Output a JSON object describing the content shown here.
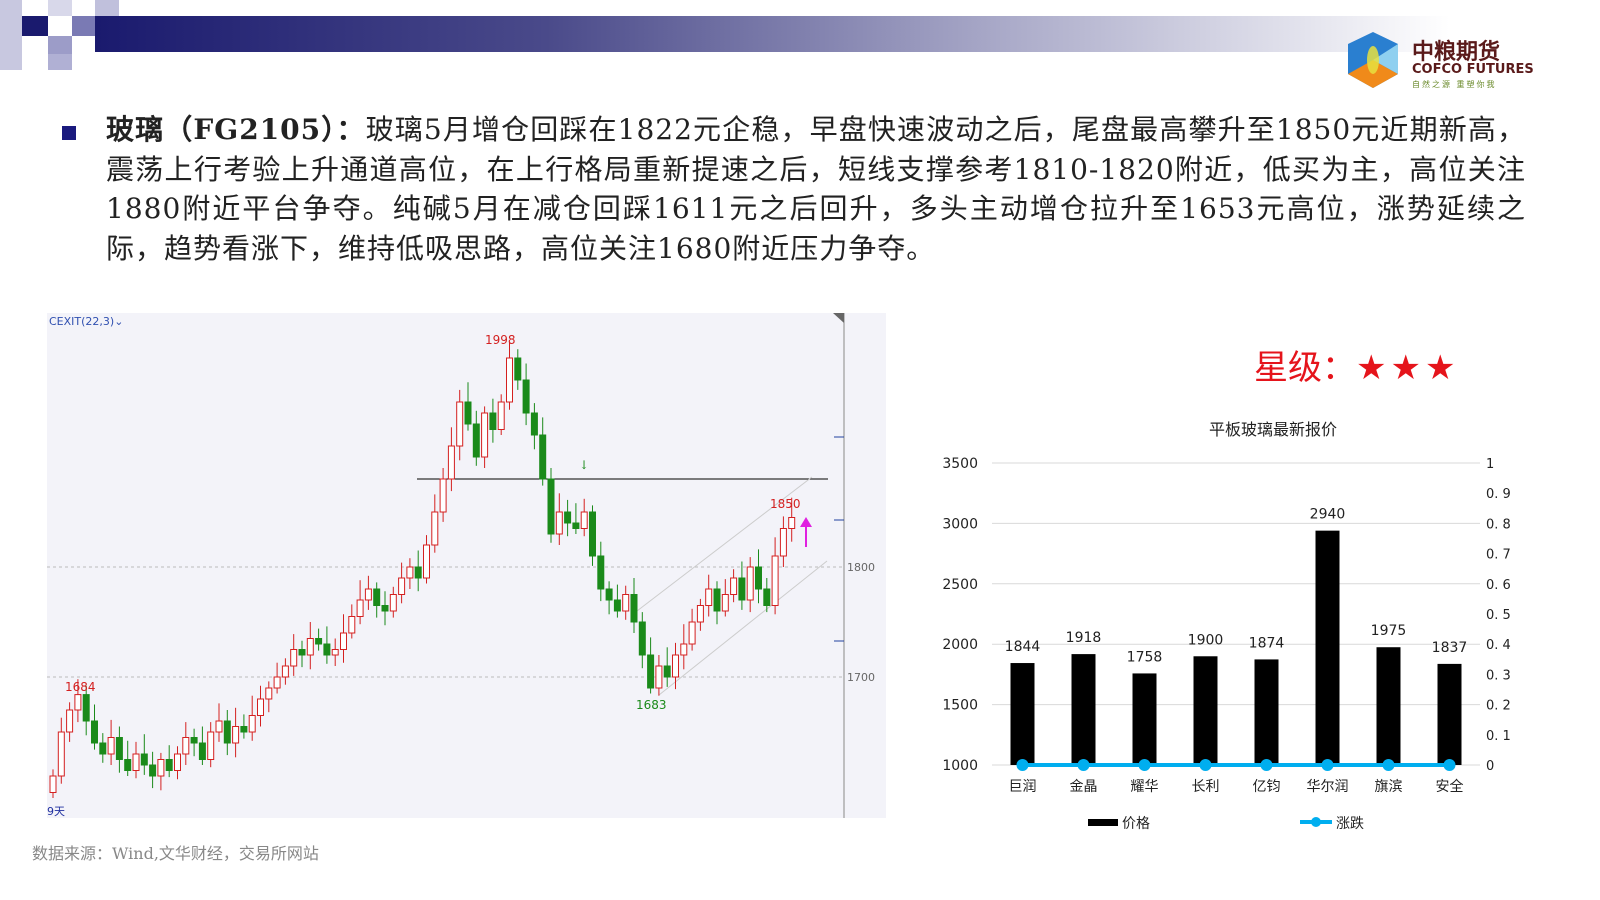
{
  "logo": {
    "cn": "中粮期货",
    "en": "COFCO FUTURES",
    "slogan": "自然之源 重塑你我"
  },
  "paragraph": {
    "lead": "玻璃（FG2105）：",
    "body": "玻璃5月增仓回踩在1822元企稳，早盘快速波动之后，尾盘最高攀升至1850元近期新高，震荡上行考验上升通道高位，在上行格局重新提速之后，短线支撑参考1810-1820附近，低买为主，高位关注1880附近平台争夺。纯碱5月在减仓回踩1611元之后回升，多头主动增仓拉升至1653元高位，涨势延续之际，趋势看涨下，维持低吸思路，高位关注1680附近压力争夺。"
  },
  "rating": {
    "label": "星级：",
    "stars": "★★★",
    "value": 3,
    "color": "#e5141b"
  },
  "source": "数据来源：Wind,文华财经，交易所网站",
  "kline": {
    "indicator": "CEXIT(22,3)",
    "period_label": "9天",
    "price_ticks": [
      1800,
      1700
    ],
    "annotations": {
      "high": "1998",
      "low_left": "1684",
      "low": "1683",
      "last_high": "1850"
    },
    "up_color": "#d42020",
    "down_color": "#1a8a1a",
    "closes": [
      1610,
      1650,
      1670,
      1684,
      1660,
      1640,
      1630,
      1645,
      1625,
      1615,
      1630,
      1620,
      1610,
      1625,
      1615,
      1630,
      1645,
      1640,
      1625,
      1650,
      1660,
      1640,
      1655,
      1650,
      1665,
      1680,
      1690,
      1700,
      1710,
      1725,
      1720,
      1735,
      1730,
      1720,
      1725,
      1740,
      1755,
      1770,
      1780,
      1765,
      1760,
      1775,
      1790,
      1800,
      1790,
      1820,
      1850,
      1880,
      1910,
      1950,
      1930,
      1900,
      1940,
      1925,
      1950,
      1990,
      1970,
      1940,
      1920,
      1880,
      1830,
      1850,
      1840,
      1835,
      1850,
      1810,
      1780,
      1770,
      1760,
      1775,
      1750,
      1720,
      1690,
      1710,
      1700,
      1720,
      1730,
      1750,
      1765,
      1780,
      1760,
      1775,
      1790,
      1770,
      1800,
      1780,
      1765,
      1810,
      1835,
      1845
    ]
  },
  "chart_data": {
    "type": "bar",
    "title": "平板玻璃最新报价",
    "categories": [
      "巨润",
      "金晶",
      "耀华",
      "长利",
      "亿钧",
      "华尔润",
      "旗滨",
      "安全"
    ],
    "series": [
      {
        "name": "价格",
        "type": "bar",
        "values": [
          1844,
          1918,
          1758,
          1900,
          1874,
          2940,
          1975,
          1837
        ],
        "color": "#000000"
      },
      {
        "name": "涨跌",
        "type": "line",
        "values": [
          0,
          0,
          0,
          0,
          0,
          0,
          0,
          0
        ],
        "color": "#00aeef",
        "axis": "right"
      }
    ],
    "ylim": [
      1000,
      3500
    ],
    "yticks": [
      1000,
      1500,
      2000,
      2500,
      3000,
      3500
    ],
    "y2lim": [
      0,
      1
    ],
    "y2ticks": [
      "0",
      "0. 1",
      "0. 2",
      "0. 3",
      "0. 4",
      "0. 5",
      "0. 6",
      "0. 7",
      "0. 8",
      "0. 9",
      "1"
    ],
    "grid": true,
    "legend": "bottom"
  }
}
